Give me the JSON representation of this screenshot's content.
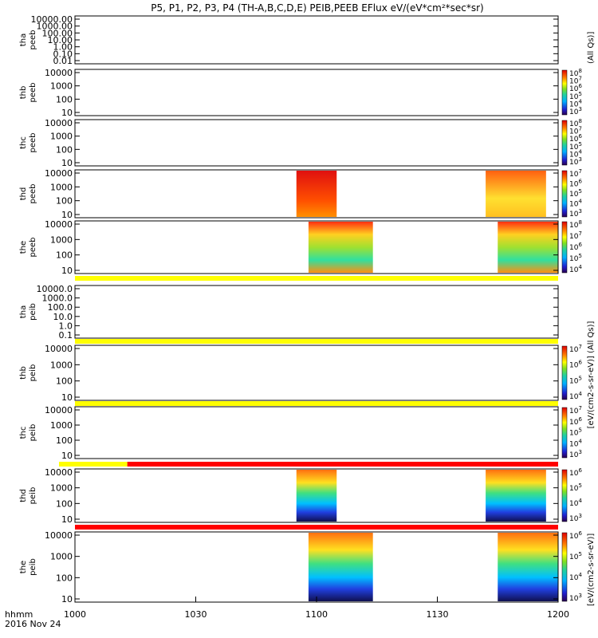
{
  "title": "P5, P1, P2, P3, P4 (TH-A,B,C,D,E) PEIB,PEEB EFlux eV/(eV*cm²*sec*sr)",
  "x_axis": {
    "label_line1": "hhmm",
    "label_line2": "2016 Nov 24",
    "ticks": [
      "1000",
      "1030",
      "1100",
      "1130",
      "1200"
    ]
  },
  "chart_data": {
    "type": "heatmap",
    "x_range_hhmm": [
      "1000",
      "1200"
    ],
    "panels": [
      {
        "id": "tha_peeb",
        "probe": "tha",
        "product": "peeb",
        "y_ticks": [
          "10000.00",
          "1000.00",
          "100.00",
          "10.00",
          "1.00",
          "0.10",
          "0.01"
        ],
        "colorbar": false,
        "data_intervals": [],
        "flag_bar": null
      },
      {
        "id": "thb_peeb",
        "probe": "thb",
        "product": "peeb",
        "y_ticks": [
          "10000",
          "1000",
          "100",
          "10"
        ],
        "colorbar": true,
        "cbar_ticks": [
          "10^3",
          "10^4",
          "10^5",
          "10^6",
          "10^7",
          "10^8"
        ],
        "data_intervals": [],
        "flag_bar": null
      },
      {
        "id": "thc_peeb",
        "probe": "thc",
        "product": "peeb",
        "y_ticks": [
          "10000",
          "1000",
          "100",
          "10"
        ],
        "colorbar": true,
        "cbar_ticks": [
          "10^3",
          "10^4",
          "10^5",
          "10^6",
          "10^7",
          "10^8"
        ],
        "data_intervals": [],
        "flag_bar": null
      },
      {
        "id": "thd_peeb",
        "probe": "thd",
        "product": "peeb",
        "y_ticks": [
          "10000",
          "1000",
          "100",
          "10"
        ],
        "colorbar": true,
        "cbar_ticks": [
          "10^3",
          "10^4",
          "10^5",
          "10^6",
          "10^7"
        ],
        "data_intervals": [
          [
            "1055",
            "1105"
          ],
          [
            "1142",
            "1157"
          ]
        ],
        "flag_bar": null
      },
      {
        "id": "the_peeb",
        "probe": "the",
        "product": "peeb",
        "y_ticks": [
          "10000",
          "1000",
          "100",
          "10"
        ],
        "colorbar": true,
        "cbar_ticks": [
          "10^4",
          "10^5",
          "10^6",
          "10^7",
          "10^8"
        ],
        "data_intervals": [
          [
            "1058",
            "1114"
          ],
          [
            "1145",
            "1200"
          ]
        ],
        "flag_bar": "yellow"
      },
      {
        "id": "tha_peib",
        "probe": "tha",
        "product": "peib",
        "y_ticks": [
          "10000.0",
          "1000.0",
          "100.0",
          "10.0",
          "1.0",
          "0.1"
        ],
        "colorbar": false,
        "data_intervals": [],
        "flag_bar": "yellow"
      },
      {
        "id": "thb_peib",
        "probe": "thb",
        "product": "peib",
        "y_ticks": [
          "10000",
          "1000",
          "100",
          "10"
        ],
        "colorbar": true,
        "cbar_ticks": [
          "10^4",
          "10^5",
          "10^6",
          "10^7"
        ],
        "data_intervals": [],
        "flag_bar": "yellow"
      },
      {
        "id": "thc_peib",
        "probe": "thc",
        "product": "peib",
        "y_ticks": [
          "10000",
          "1000",
          "100",
          "10"
        ],
        "colorbar": true,
        "cbar_ticks": [
          "10^3",
          "10^4",
          "10^5",
          "10^6",
          "10^7"
        ],
        "data_intervals": [],
        "flag_bar": "yellow_red"
      },
      {
        "id": "thd_peib",
        "probe": "thd",
        "product": "peib",
        "y_ticks": [
          "10000",
          "1000",
          "100",
          "10"
        ],
        "colorbar": true,
        "cbar_ticks": [
          "10^3",
          "10^4",
          "10^5",
          "10^6"
        ],
        "data_intervals": [
          [
            "1055",
            "1105"
          ],
          [
            "1142",
            "1157"
          ]
        ],
        "flag_bar": "red"
      },
      {
        "id": "the_peib",
        "probe": "the",
        "product": "peib",
        "y_ticks": [
          "10000",
          "1000",
          "100",
          "10"
        ],
        "colorbar": true,
        "cbar_ticks": [
          "10^3",
          "10^4",
          "10^5",
          "10^6"
        ],
        "data_intervals": [
          [
            "1058",
            "1114"
          ],
          [
            "1145",
            "1200"
          ]
        ],
        "flag_bar": null
      }
    ]
  },
  "right_labels": {
    "top": "(All Qs)]",
    "middle": "[eV/(cm2-s-sr-eV)] (All Qs)]",
    "bottom": "[eV/(cm2-s-sr-eV)]"
  }
}
